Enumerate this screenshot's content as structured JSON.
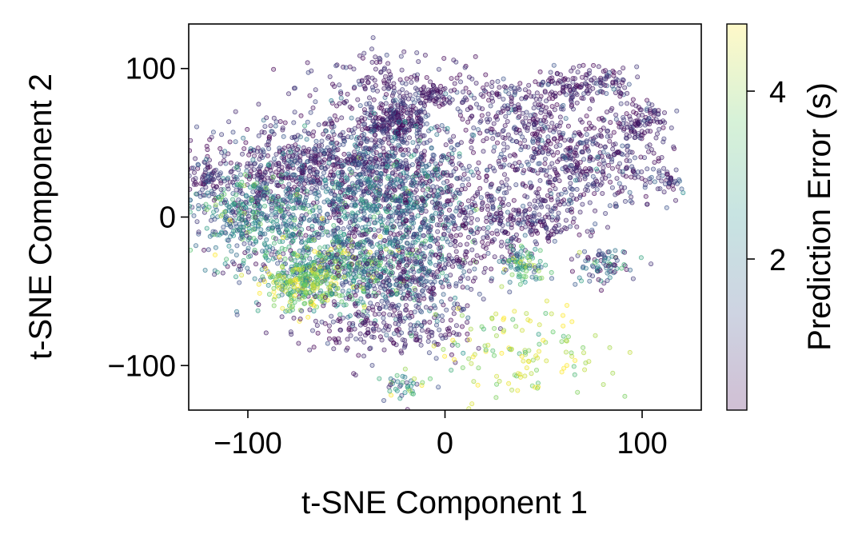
{
  "chart_data": {
    "type": "scatter",
    "xlabel": "t-SNE Component 1",
    "ylabel": "t-SNE Component 2",
    "xlim": [
      -130,
      130
    ],
    "ylim": [
      -130,
      130
    ],
    "x_ticks": [
      -100,
      0,
      100
    ],
    "y_ticks": [
      -100,
      0,
      100
    ],
    "x_tick_labels": [
      "−100",
      "0",
      "100"
    ],
    "y_tick_labels": [
      "−100",
      "0",
      "100"
    ],
    "grid": false,
    "colormap": "viridis",
    "colormap_stops": [
      "#440154",
      "#3b528b",
      "#21918c",
      "#5ec962",
      "#fde725"
    ],
    "point_alpha": 0.25,
    "colorbar": {
      "label": "Prediction Error (s)",
      "range": [
        0.2,
        4.8
      ],
      "ticks": [
        2,
        4
      ],
      "tick_labels": [
        "2",
        "4"
      ],
      "position": "right"
    },
    "clusters": [
      {
        "cx": -25,
        "cy": 65,
        "sx": 9,
        "sy": 8,
        "n": 260,
        "err_mean": 0.7,
        "err_sd": 0.5
      },
      {
        "cx": -40,
        "cy": 35,
        "sx": 26,
        "sy": 16,
        "n": 520,
        "err_mean": 0.8,
        "err_sd": 0.6
      },
      {
        "cx": -85,
        "cy": 35,
        "sx": 20,
        "sy": 16,
        "n": 320,
        "err_mean": 0.7,
        "err_sd": 0.5
      },
      {
        "cx": -60,
        "cy": 0,
        "sx": 30,
        "sy": 22,
        "n": 650,
        "err_mean": 1.6,
        "err_sd": 0.9
      },
      {
        "cx": -20,
        "cy": 10,
        "sx": 18,
        "sy": 20,
        "n": 480,
        "err_mean": 1.5,
        "err_sd": 0.9
      },
      {
        "cx": -100,
        "cy": 0,
        "sx": 12,
        "sy": 14,
        "n": 260,
        "err_mean": 2.1,
        "err_sd": 1.0
      },
      {
        "cx": -50,
        "cy": -35,
        "sx": 20,
        "sy": 14,
        "n": 520,
        "err_mean": 2.4,
        "err_sd": 1.1
      },
      {
        "cx": -73,
        "cy": -45,
        "sx": 9,
        "sy": 9,
        "n": 220,
        "err_mean": 4.0,
        "err_sd": 0.8
      },
      {
        "cx": -15,
        "cy": -40,
        "sx": 16,
        "sy": 16,
        "n": 300,
        "err_mean": 1.0,
        "err_sd": 0.7
      },
      {
        "cx": -30,
        "cy": -75,
        "sx": 22,
        "sy": 10,
        "n": 200,
        "err_mean": 0.6,
        "err_sd": 0.4
      },
      {
        "cx": 70,
        "cy": 40,
        "sx": 22,
        "sy": 18,
        "n": 480,
        "err_mean": 0.7,
        "err_sd": 0.5
      },
      {
        "cx": 35,
        "cy": 70,
        "sx": 16,
        "sy": 12,
        "n": 220,
        "err_mean": 0.6,
        "err_sd": 0.4
      },
      {
        "cx": 70,
        "cy": 90,
        "sx": 14,
        "sy": 6,
        "n": 150,
        "err_mean": 0.6,
        "err_sd": 0.4
      },
      {
        "cx": 20,
        "cy": 0,
        "sx": 14,
        "sy": 18,
        "n": 220,
        "err_mean": 0.7,
        "err_sd": 0.5
      },
      {
        "cx": 50,
        "cy": 0,
        "sx": 12,
        "sy": 10,
        "n": 150,
        "err_mean": 0.7,
        "err_sd": 0.5
      },
      {
        "cx": 40,
        "cy": -32,
        "sx": 6,
        "sy": 6,
        "n": 90,
        "err_mean": 2.8,
        "err_sd": 1.0
      },
      {
        "cx": 80,
        "cy": -32,
        "sx": 8,
        "sy": 6,
        "n": 80,
        "err_mean": 1.5,
        "err_sd": 1.0
      },
      {
        "cx": 100,
        "cy": 65,
        "sx": 6,
        "sy": 6,
        "n": 70,
        "err_mean": 0.6,
        "err_sd": 0.4
      },
      {
        "cx": 35,
        "cy": -90,
        "sx": 22,
        "sy": 18,
        "n": 130,
        "err_mean": 4.2,
        "err_sd": 0.6
      },
      {
        "cx": -120,
        "cy": 25,
        "sx": 5,
        "sy": 5,
        "n": 60,
        "err_mean": 0.8,
        "err_sd": 0.5
      },
      {
        "cx": -30,
        "cy": 90,
        "sx": 22,
        "sy": 10,
        "n": 150,
        "err_mean": 0.6,
        "err_sd": 0.4
      },
      {
        "cx": -5,
        "cy": 82,
        "sx": 4,
        "sy": 4,
        "n": 50,
        "err_mean": 0.5,
        "err_sd": 0.3
      },
      {
        "cx": 115,
        "cy": 25,
        "sx": 4,
        "sy": 4,
        "n": 30,
        "err_mean": 0.8,
        "err_sd": 0.5
      },
      {
        "cx": -20,
        "cy": -115,
        "sx": 6,
        "sy": 5,
        "n": 40,
        "err_mean": 2.6,
        "err_sd": 1.2
      }
    ]
  }
}
